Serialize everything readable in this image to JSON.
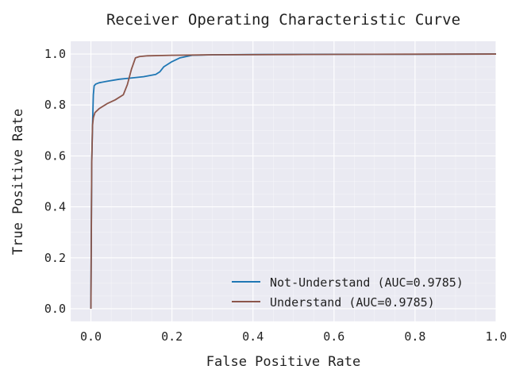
{
  "chart_data": {
    "type": "line",
    "title": "Receiver Operating Characteristic Curve",
    "xlabel": "False Positive Rate",
    "ylabel": "True Positive Rate",
    "xlim": [
      -0.05,
      1.0
    ],
    "ylim": [
      -0.05,
      1.05
    ],
    "xticks": [
      "0.0",
      "0.2",
      "0.4",
      "0.6",
      "0.8",
      "1.0"
    ],
    "yticks": [
      "0.0",
      "0.2",
      "0.4",
      "0.6",
      "0.8",
      "1.0"
    ],
    "grid": true,
    "legend_position": "lower-right",
    "background_color": "#eaeaf2",
    "series": [
      {
        "name": "Not-Understand (AUC=0.9785)",
        "color": "#1f77b4",
        "x": [
          0.0,
          0.002,
          0.004,
          0.006,
          0.008,
          0.012,
          0.02,
          0.04,
          0.07,
          0.1,
          0.13,
          0.16,
          0.17,
          0.18,
          0.2,
          0.22,
          0.25,
          0.3,
          0.4,
          0.6,
          0.8,
          1.0
        ],
        "y": [
          0.0,
          0.57,
          0.72,
          0.84,
          0.875,
          0.882,
          0.887,
          0.893,
          0.901,
          0.906,
          0.911,
          0.92,
          0.93,
          0.95,
          0.97,
          0.985,
          0.995,
          0.997,
          0.998,
          0.999,
          0.999,
          1.0
        ]
      },
      {
        "name": "Understand (AUC=0.9785)",
        "color": "#8c564b",
        "x": [
          0.0,
          0.002,
          0.004,
          0.006,
          0.01,
          0.02,
          0.04,
          0.06,
          0.08,
          0.09,
          0.1,
          0.11,
          0.12,
          0.14,
          0.2,
          0.3,
          0.5,
          0.7,
          1.0
        ],
        "y": [
          0.0,
          0.57,
          0.72,
          0.75,
          0.77,
          0.785,
          0.805,
          0.82,
          0.84,
          0.88,
          0.94,
          0.985,
          0.99,
          0.993,
          0.995,
          0.997,
          0.998,
          0.999,
          1.0
        ]
      }
    ]
  }
}
